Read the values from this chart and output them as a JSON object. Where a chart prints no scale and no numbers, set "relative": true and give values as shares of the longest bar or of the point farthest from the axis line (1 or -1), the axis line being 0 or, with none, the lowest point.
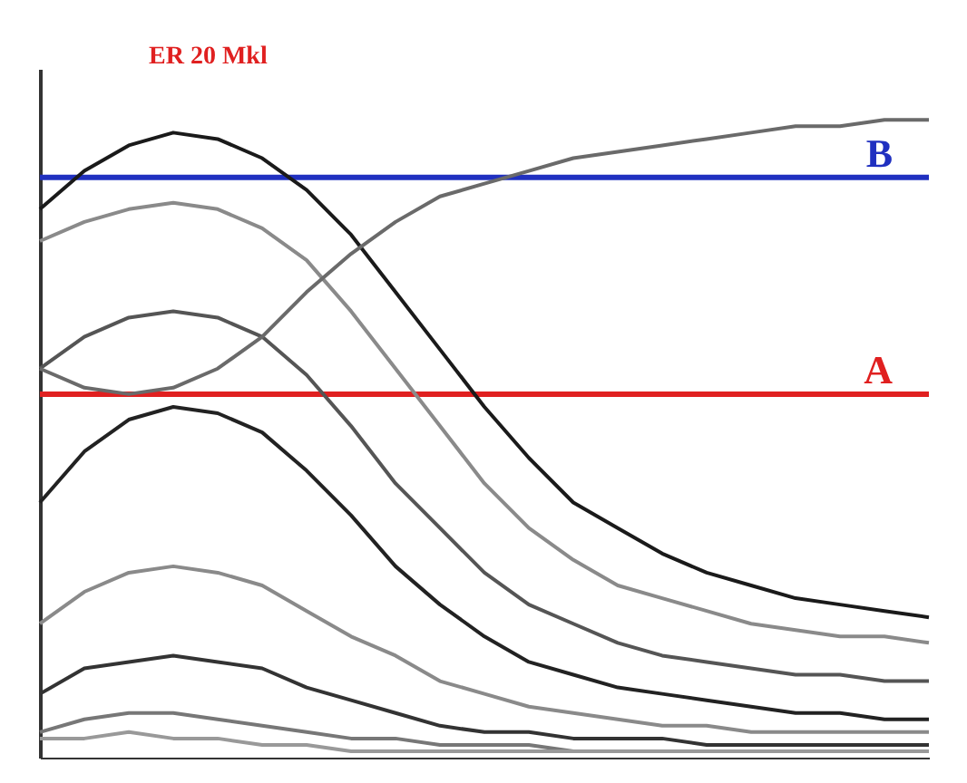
{
  "chart_data": {
    "type": "line",
    "relative": true,
    "grid": false,
    "legend": false,
    "tick_labels": false,
    "marker": "none",
    "line_style": "solid",
    "categories": [
      null,
      null,
      null,
      null,
      null,
      null,
      null,
      null,
      null,
      null,
      null,
      null,
      null,
      null,
      null,
      null,
      null,
      null,
      null,
      null,
      null
    ],
    "series": [
      {
        "color": "#1a1a1a",
        "values": [
          0.86,
          0.92,
          0.96,
          0.98,
          0.97,
          0.94,
          0.89,
          0.82,
          0.73,
          0.64,
          0.55,
          0.47,
          0.4,
          0.36,
          0.32,
          0.29,
          0.27,
          0.25,
          0.24,
          0.23,
          0.22
        ]
      },
      {
        "color": "#8a8a8a",
        "values": [
          0.81,
          0.84,
          0.86,
          0.87,
          0.86,
          0.83,
          0.78,
          0.7,
          0.61,
          0.52,
          0.43,
          0.36,
          0.31,
          0.27,
          0.25,
          0.23,
          0.21,
          0.2,
          0.19,
          0.19,
          0.18
        ]
      },
      {
        "color": "#555555",
        "values": [
          0.61,
          0.66,
          0.69,
          0.7,
          0.69,
          0.66,
          0.6,
          0.52,
          0.43,
          0.36,
          0.29,
          0.24,
          0.21,
          0.18,
          0.16,
          0.15,
          0.14,
          0.13,
          0.13,
          0.12,
          0.12
        ]
      },
      {
        "color": "#222222",
        "values": [
          0.4,
          0.48,
          0.53,
          0.55,
          0.54,
          0.51,
          0.45,
          0.38,
          0.3,
          0.24,
          0.19,
          0.15,
          0.13,
          0.11,
          0.1,
          0.09,
          0.08,
          0.07,
          0.07,
          0.06,
          0.06
        ]
      },
      {
        "color": "#8a8a8a",
        "values": [
          0.21,
          0.26,
          0.29,
          0.3,
          0.29,
          0.27,
          0.23,
          0.19,
          0.16,
          0.12,
          0.1,
          0.08,
          0.07,
          0.06,
          0.05,
          0.05,
          0.04,
          0.04,
          0.04,
          0.04,
          0.04
        ]
      },
      {
        "color": "#333333",
        "values": [
          0.1,
          0.14,
          0.15,
          0.16,
          0.15,
          0.14,
          0.11,
          0.09,
          0.07,
          0.05,
          0.04,
          0.04,
          0.03,
          0.03,
          0.03,
          0.02,
          0.02,
          0.02,
          0.02,
          0.02,
          0.02
        ]
      },
      {
        "color": "#777777",
        "values": [
          0.04,
          0.06,
          0.07,
          0.07,
          0.06,
          0.05,
          0.04,
          0.03,
          0.03,
          0.02,
          0.02,
          0.02,
          0.01,
          0.01,
          0.01,
          0.01,
          0.01,
          0.01,
          0.01,
          0.01,
          0.01
        ]
      },
      {
        "color": "#999999",
        "values": [
          0.03,
          0.03,
          0.04,
          0.03,
          0.03,
          0.02,
          0.02,
          0.01,
          0.01,
          0.01,
          0.01,
          0.01,
          0.01,
          0.01,
          0.01,
          0.01,
          0.01,
          0.01,
          0.01,
          0.01,
          0.01
        ]
      },
      {
        "color": "#6a6a6a",
        "values": [
          0.61,
          0.58,
          0.57,
          0.58,
          0.61,
          0.66,
          0.73,
          0.79,
          0.84,
          0.88,
          0.9,
          0.92,
          0.94,
          0.95,
          0.96,
          0.97,
          0.98,
          0.99,
          0.99,
          1,
          1
        ]
      }
    ],
    "ref_lines": [
      {
        "axis": "y",
        "value": 0.57,
        "label": "A",
        "color": "#e02020"
      },
      {
        "axis": "y",
        "value": 0.91,
        "label": "B",
        "color": "#2030c0"
      }
    ],
    "annotations": [
      "ER 20 Mkl"
    ]
  }
}
